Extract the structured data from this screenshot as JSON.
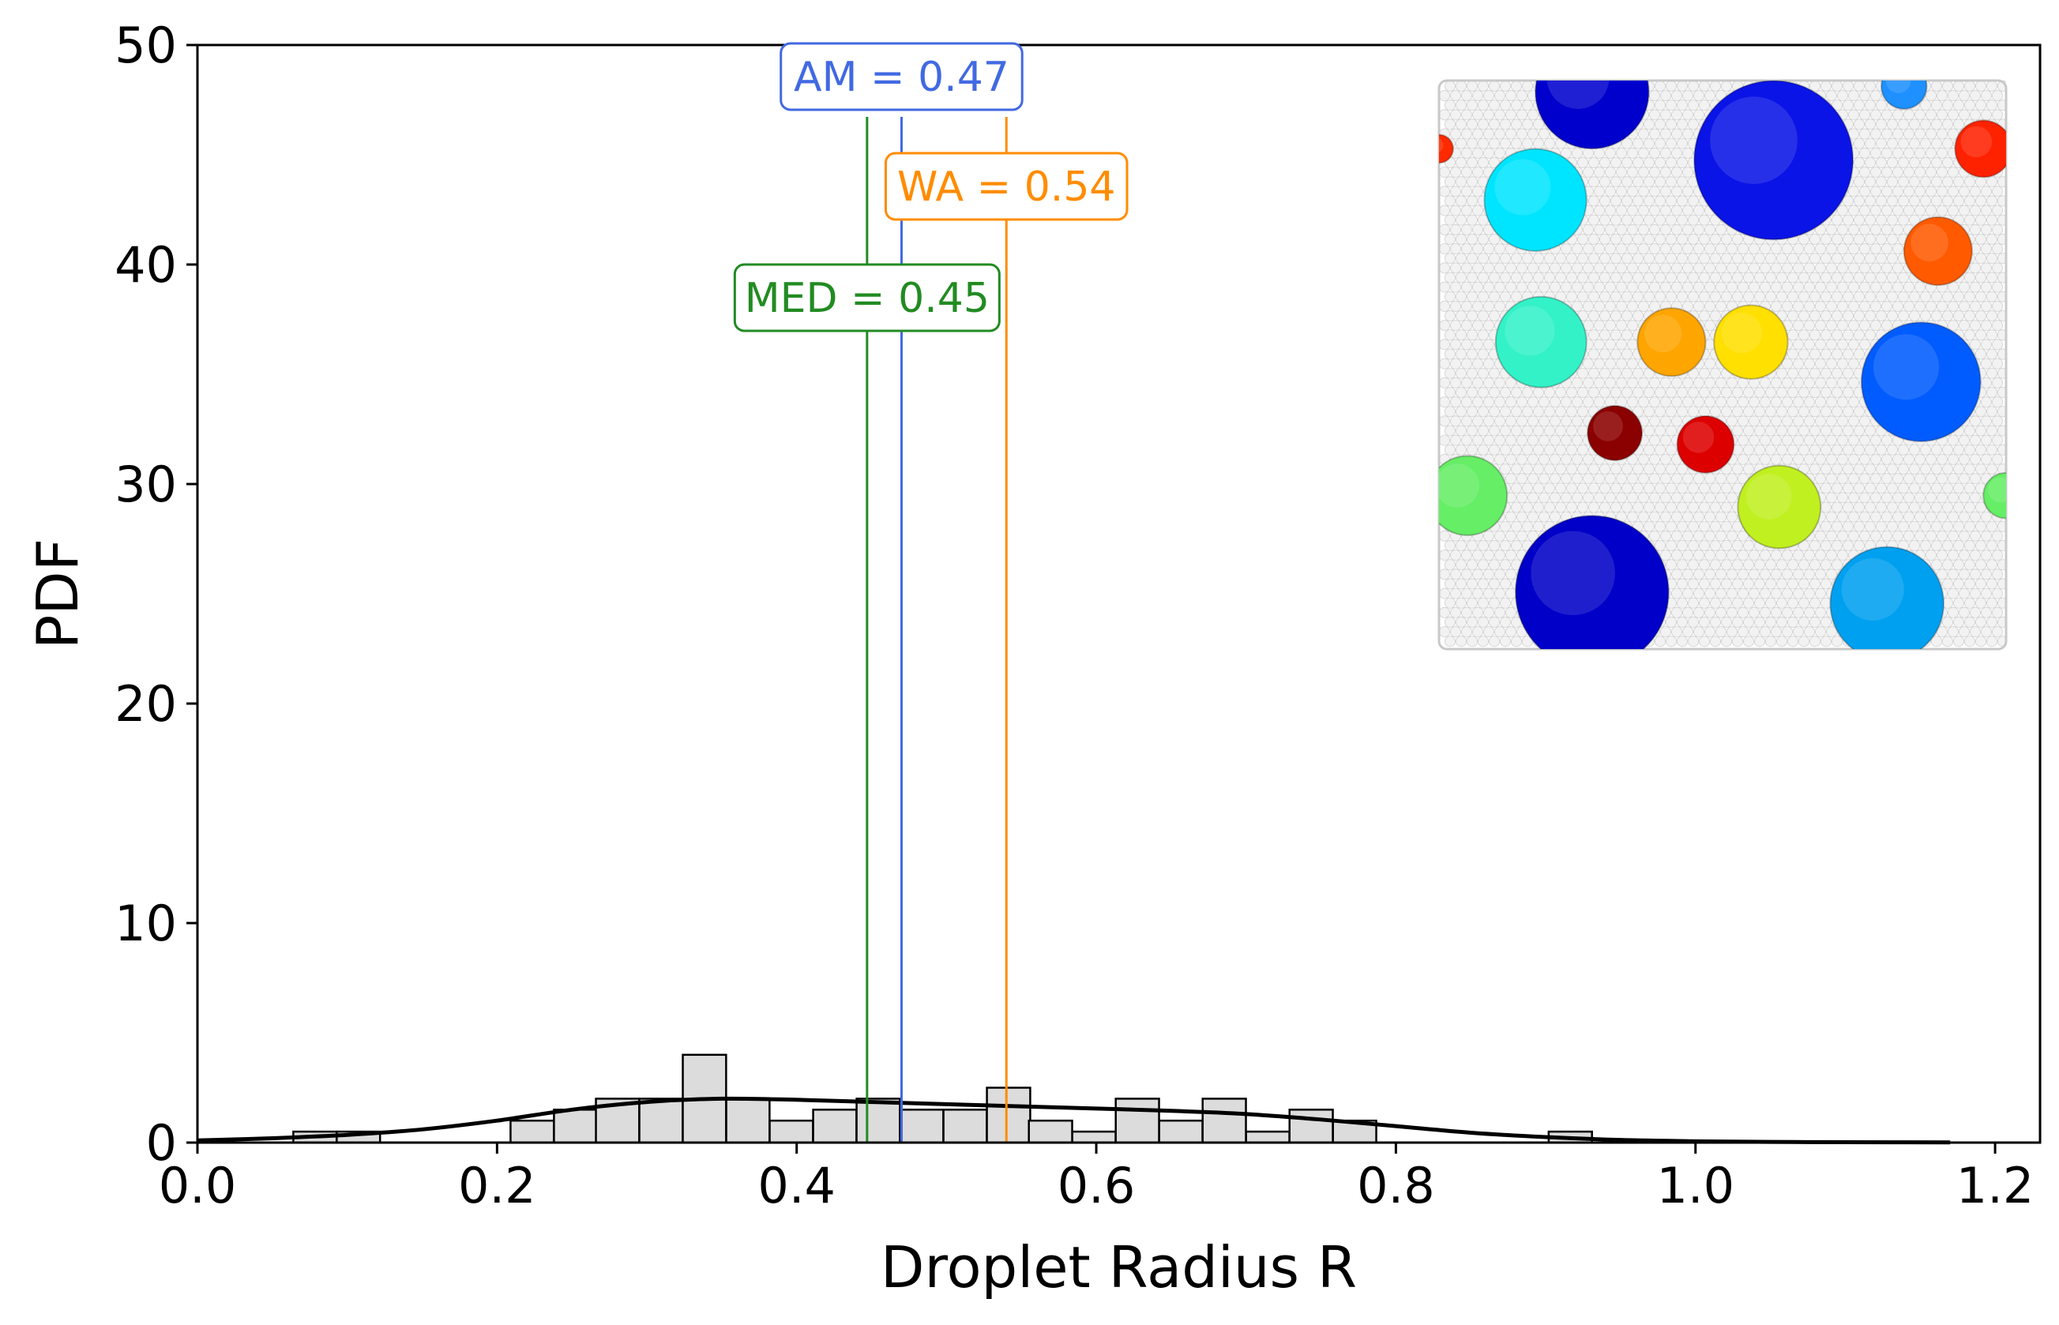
{
  "chart_data": {
    "type": "bar",
    "title": "",
    "xlabel": "Droplet Radius R",
    "ylabel": "PDF",
    "xlim": [
      0.0,
      1.23
    ],
    "ylim": [
      0,
      50
    ],
    "xticks": [
      0.0,
      0.2,
      0.4,
      0.6,
      0.8,
      1.0,
      1.2
    ],
    "xtick_labels": [
      "0.0",
      "0.2",
      "0.4",
      "0.6",
      "0.8",
      "1.0",
      "1.2"
    ],
    "yticks": [
      0,
      10,
      20,
      30,
      40,
      50
    ],
    "ytick_labels": [
      "0",
      "10",
      "20",
      "30",
      "40",
      "50"
    ],
    "grid": false,
    "bin_width": 0.0289,
    "histogram": [
      {
        "x0": 0.064,
        "value": 0.5
      },
      {
        "x0": 0.093,
        "value": 0.5
      },
      {
        "x0": 0.209,
        "value": 1.0
      },
      {
        "x0": 0.238,
        "value": 1.5
      },
      {
        "x0": 0.266,
        "value": 2.0
      },
      {
        "x0": 0.295,
        "value": 2.0
      },
      {
        "x0": 0.324,
        "value": 4.0
      },
      {
        "x0": 0.353,
        "value": 2.0
      },
      {
        "x0": 0.382,
        "value": 1.0
      },
      {
        "x0": 0.411,
        "value": 1.5
      },
      {
        "x0": 0.44,
        "value": 2.0
      },
      {
        "x0": 0.469,
        "value": 1.5
      },
      {
        "x0": 0.498,
        "value": 1.5
      },
      {
        "x0": 0.527,
        "value": 2.5
      },
      {
        "x0": 0.555,
        "value": 1.0
      },
      {
        "x0": 0.584,
        "value": 0.5
      },
      {
        "x0": 0.613,
        "value": 2.0
      },
      {
        "x0": 0.642,
        "value": 1.0
      },
      {
        "x0": 0.671,
        "value": 2.0
      },
      {
        "x0": 0.7,
        "value": 0.5
      },
      {
        "x0": 0.729,
        "value": 1.5
      },
      {
        "x0": 0.758,
        "value": 1.0
      },
      {
        "x0": 0.902,
        "value": 0.5
      }
    ],
    "kde": {
      "x": [
        0.0,
        0.05,
        0.1,
        0.15,
        0.2,
        0.25,
        0.3,
        0.35,
        0.4,
        0.45,
        0.5,
        0.55,
        0.6,
        0.65,
        0.7,
        0.75,
        0.8,
        0.85,
        0.9,
        0.95,
        1.0,
        1.05,
        1.1,
        1.17
      ],
      "y": [
        0.1,
        0.2,
        0.35,
        0.6,
        1.0,
        1.5,
        1.85,
        2.0,
        1.95,
        1.85,
        1.75,
        1.65,
        1.55,
        1.45,
        1.3,
        1.05,
        0.75,
        0.45,
        0.25,
        0.12,
        0.06,
        0.03,
        0.02,
        0.01
      ]
    },
    "series": [
      {
        "name": "KDE",
        "color": "#000000"
      }
    ],
    "reference_lines": [
      {
        "name": "MED",
        "label": "MED = 0.45",
        "value": 0.447,
        "color": "#228b22"
      },
      {
        "name": "AM",
        "label": "AM = 0.47",
        "value": 0.47,
        "color": "#4169e1"
      },
      {
        "name": "WA",
        "label": "WA = 0.54",
        "value": 0.54,
        "color": "#ff8c00"
      }
    ],
    "inset": {
      "description": "droplet simulation snapshot",
      "background_particle_color": "#f2f2f2",
      "droplets": [
        {
          "nx": 0.27,
          "ny": 0.02,
          "nr": 0.1,
          "color": "#0000cd"
        },
        {
          "nx": 0.82,
          "ny": 0.01,
          "nr": 0.04,
          "color": "#1e90ff"
        },
        {
          "nx": 0.59,
          "ny": 0.14,
          "nr": 0.14,
          "color": "#0a14e6"
        },
        {
          "nx": 0.0,
          "ny": 0.12,
          "nr": 0.025,
          "color": "#ff2a00"
        },
        {
          "nx": 0.96,
          "ny": 0.12,
          "nr": 0.05,
          "color": "#ff2200"
        },
        {
          "nx": 0.17,
          "ny": 0.21,
          "nr": 0.09,
          "color": "#00e5ff"
        },
        {
          "nx": 0.88,
          "ny": 0.3,
          "nr": 0.06,
          "color": "#ff5a00"
        },
        {
          "nx": 0.18,
          "ny": 0.46,
          "nr": 0.08,
          "color": "#33f2c8"
        },
        {
          "nx": 0.41,
          "ny": 0.46,
          "nr": 0.06,
          "color": "#ffa500"
        },
        {
          "nx": 0.55,
          "ny": 0.46,
          "nr": 0.065,
          "color": "#ffe000"
        },
        {
          "nx": 0.85,
          "ny": 0.53,
          "nr": 0.105,
          "color": "#005cff"
        },
        {
          "nx": 0.31,
          "ny": 0.62,
          "nr": 0.048,
          "color": "#8b0000"
        },
        {
          "nx": 0.47,
          "ny": 0.64,
          "nr": 0.05,
          "color": "#dd0000"
        },
        {
          "nx": 0.05,
          "ny": 0.73,
          "nr": 0.07,
          "color": "#66ee66"
        },
        {
          "nx": 0.6,
          "ny": 0.75,
          "nr": 0.073,
          "color": "#c0f020"
        },
        {
          "nx": 1.0,
          "ny": 0.73,
          "nr": 0.04,
          "color": "#66ee66"
        },
        {
          "nx": 0.27,
          "ny": 0.9,
          "nr": 0.135,
          "color": "#0000c8"
        },
        {
          "nx": 0.79,
          "ny": 0.92,
          "nr": 0.1,
          "color": "#00a0f0"
        }
      ]
    }
  }
}
